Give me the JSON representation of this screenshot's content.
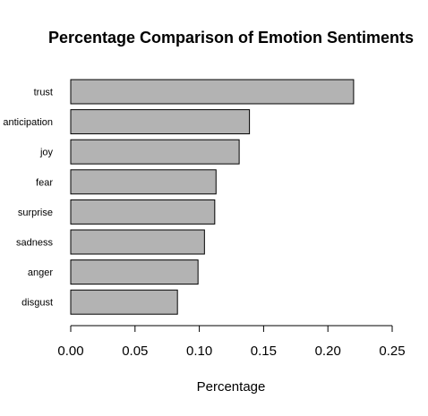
{
  "chart_data": {
    "type": "bar",
    "orientation": "horizontal",
    "title": "Percentage Comparison of Emotion Sentiments",
    "xlabel": "Percentage",
    "ylabel": "",
    "categories": [
      "trust",
      "anticipation",
      "joy",
      "fear",
      "surprise",
      "sadness",
      "anger",
      "disgust"
    ],
    "values": [
      0.22,
      0.139,
      0.131,
      0.113,
      0.112,
      0.104,
      0.099,
      0.083
    ],
    "xlim": [
      0,
      0.25
    ],
    "xticks": [
      0,
      0.05,
      0.1,
      0.15,
      0.2,
      0.25
    ],
    "xtick_labels": [
      "0.00",
      "0.05",
      "0.10",
      "0.15",
      "0.20",
      "0.25"
    ],
    "grid": false,
    "legend": "none",
    "bar_color": "#b3b3b3",
    "bar_border_color": "#000000"
  }
}
